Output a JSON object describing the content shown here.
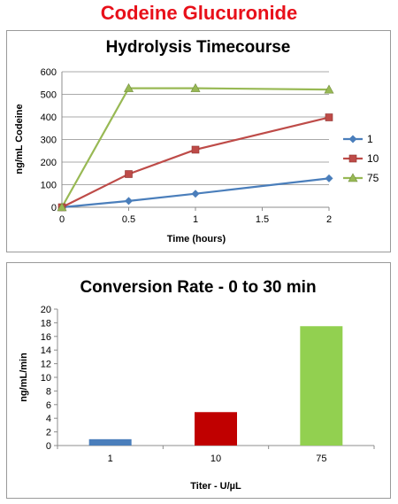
{
  "page_title": "Codeine Glucuronide",
  "chart_data": [
    {
      "type": "line",
      "title": "Hydrolysis Timecourse",
      "xlabel": "Time (hours)",
      "ylabel": "ng/mL Codeine",
      "xlim": [
        0,
        2
      ],
      "ylim": [
        0,
        600
      ],
      "x_ticks": [
        "0",
        "0.5",
        "1",
        "1.5",
        "2"
      ],
      "y_ticks": [
        "0",
        "100",
        "200",
        "300",
        "400",
        "500",
        "600"
      ],
      "x_tick_values": [
        0,
        0.5,
        1,
        1.5,
        2
      ],
      "y_tick_values": [
        0,
        100,
        200,
        300,
        400,
        500,
        600
      ],
      "grid": "horizontal",
      "legend_position": "right",
      "series": [
        {
          "name": "1",
          "color": "#4a7ebb",
          "marker": "diamond",
          "x": [
            0,
            0.5,
            1,
            2
          ],
          "y": [
            0,
            28,
            60,
            128
          ]
        },
        {
          "name": "10",
          "color": "#be4b48",
          "marker": "square",
          "x": [
            0,
            0.5,
            1,
            2
          ],
          "y": [
            0,
            147,
            255,
            398
          ]
        },
        {
          "name": "75",
          "color": "#98b954",
          "marker": "triangle",
          "x": [
            0,
            0.5,
            1,
            2
          ],
          "y": [
            0,
            527,
            527,
            521
          ]
        }
      ]
    },
    {
      "type": "bar",
      "title": "Conversion Rate - 0 to 30 min",
      "xlabel": "Titer - U/µL",
      "ylabel": "ng/mL/min",
      "ylim": [
        0,
        20
      ],
      "y_ticks": [
        "0",
        "2",
        "4",
        "6",
        "8",
        "10",
        "12",
        "14",
        "16",
        "18",
        "20"
      ],
      "y_tick_values": [
        0,
        2,
        4,
        6,
        8,
        10,
        12,
        14,
        16,
        18,
        20
      ],
      "grid": "none",
      "categories": [
        "1",
        "10",
        "75"
      ],
      "values": [
        0.93,
        4.9,
        17.5
      ],
      "colors": [
        "#4a7ebb",
        "#c00000",
        "#92d050"
      ]
    }
  ]
}
